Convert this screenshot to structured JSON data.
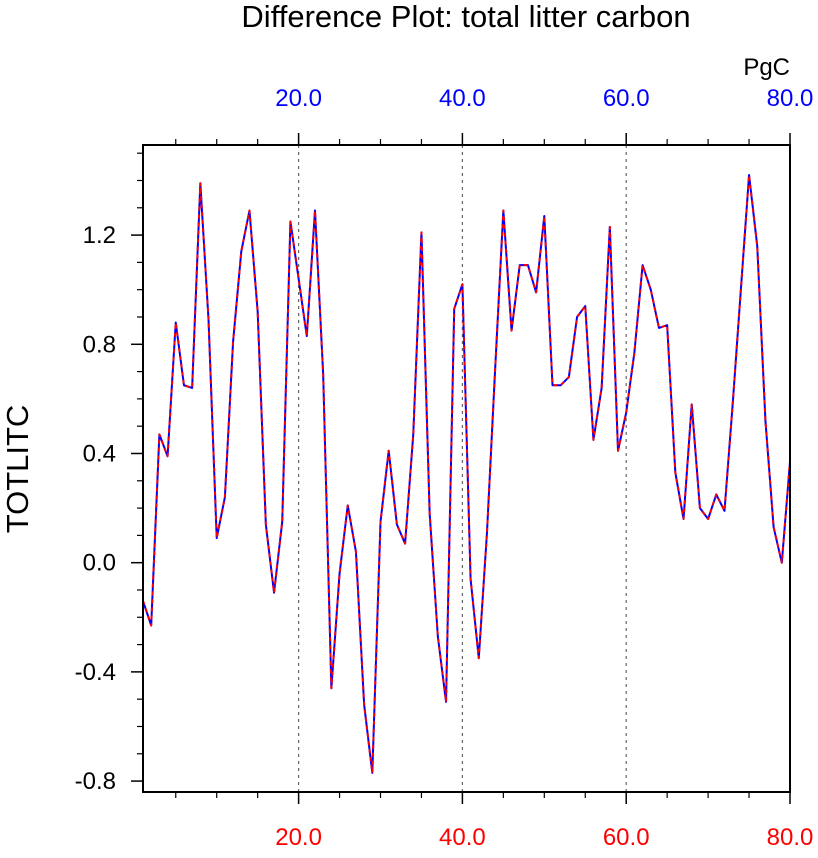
{
  "chart_data": {
    "type": "line",
    "title": "Difference Plot: total litter carbon",
    "units": "PgC",
    "ylabel": "TOTLITC",
    "xlabel": "",
    "xlim": [
      1,
      80
    ],
    "ylim": [
      -0.84,
      1.53
    ],
    "grid": "vertical dashed lines at 20, 40, 60",
    "x_ticks_bottom": [
      20,
      40,
      60,
      80
    ],
    "x_tick_labels_bottom": [
      "20.0",
      "40.0",
      "60.0",
      "80.0"
    ],
    "x_tick_labels_bottom_color": "#ff0000",
    "x_ticks_top": [
      20,
      40,
      60,
      80
    ],
    "x_tick_labels_top": [
      "20.0",
      "40.0",
      "60.0",
      "80.0"
    ],
    "x_tick_labels_top_color": "#0000ff",
    "y_ticks": [
      -0.8,
      -0.4,
      0.0,
      0.4,
      0.8,
      1.2
    ],
    "y_tick_labels": [
      "-0.8",
      "-0.4",
      "0.0",
      "0.4",
      "0.8",
      "1.2"
    ],
    "series": [
      {
        "color": "#0000ff",
        "style": "solid",
        "x": [
          1,
          2,
          3,
          4,
          5,
          6,
          7,
          8,
          9,
          10,
          11,
          12,
          13,
          14,
          15,
          16,
          17,
          18,
          19,
          20,
          21,
          22,
          23,
          24,
          25,
          26,
          27,
          28,
          29,
          30,
          31,
          32,
          33,
          34,
          35,
          36,
          37,
          38,
          39,
          40,
          41,
          42,
          43,
          44,
          45,
          46,
          47,
          48,
          49,
          50,
          51,
          52,
          53,
          54,
          55,
          56,
          57,
          58,
          59,
          60,
          61,
          62,
          63,
          64,
          65,
          66,
          67,
          68,
          69,
          70,
          71,
          72,
          73,
          74,
          75,
          76,
          77,
          78,
          79,
          80
        ],
        "values": [
          -0.14,
          -0.23,
          0.47,
          0.39,
          0.88,
          0.65,
          0.64,
          1.39,
          0.89,
          0.09,
          0.24,
          0.81,
          1.14,
          1.29,
          0.92,
          0.14,
          -0.11,
          0.15,
          1.25,
          1.04,
          0.83,
          1.29,
          0.69,
          -0.46,
          -0.04,
          0.21,
          0.04,
          -0.52,
          -0.77,
          0.15,
          0.41,
          0.14,
          0.07,
          0.47,
          1.21,
          0.18,
          -0.27,
          -0.51,
          0.93,
          1.02,
          -0.06,
          -0.35,
          0.11,
          0.71,
          1.29,
          0.85,
          1.09,
          1.09,
          0.99,
          1.27,
          0.65,
          0.65,
          0.68,
          0.9,
          0.94,
          0.45,
          0.64,
          1.23,
          0.41,
          0.55,
          0.77,
          1.09,
          1.0,
          0.86,
          0.87,
          0.33,
          0.16,
          0.58,
          0.2,
          0.16,
          0.25,
          0.19,
          0.58,
          1.0,
          1.42,
          1.16,
          0.52,
          0.13,
          0.0,
          0.37
        ]
      },
      {
        "color": "#ff0000",
        "style": "dashed",
        "x": [
          1,
          2,
          3,
          4,
          5,
          6,
          7,
          8,
          9,
          10,
          11,
          12,
          13,
          14,
          15,
          16,
          17,
          18,
          19,
          20,
          21,
          22,
          23,
          24,
          25,
          26,
          27,
          28,
          29,
          30,
          31,
          32,
          33,
          34,
          35,
          36,
          37,
          38,
          39,
          40,
          41,
          42,
          43,
          44,
          45,
          46,
          47,
          48,
          49,
          50,
          51,
          52,
          53,
          54,
          55,
          56,
          57,
          58,
          59,
          60,
          61,
          62,
          63,
          64,
          65,
          66,
          67,
          68,
          69,
          70,
          71,
          72,
          73,
          74,
          75,
          76,
          77,
          78,
          79,
          80
        ],
        "values": [
          -0.14,
          -0.23,
          0.47,
          0.39,
          0.88,
          0.65,
          0.64,
          1.39,
          0.89,
          0.09,
          0.24,
          0.81,
          1.14,
          1.29,
          0.92,
          0.14,
          -0.11,
          0.15,
          1.25,
          1.04,
          0.83,
          1.29,
          0.69,
          -0.46,
          -0.04,
          0.21,
          0.04,
          -0.52,
          -0.77,
          0.15,
          0.41,
          0.14,
          0.07,
          0.47,
          1.21,
          0.18,
          -0.27,
          -0.51,
          0.93,
          1.02,
          -0.06,
          -0.35,
          0.11,
          0.71,
          1.29,
          0.85,
          1.09,
          1.09,
          0.99,
          1.27,
          0.65,
          0.65,
          0.68,
          0.9,
          0.94,
          0.45,
          0.64,
          1.23,
          0.41,
          0.55,
          0.77,
          1.09,
          1.0,
          0.86,
          0.87,
          0.33,
          0.16,
          0.58,
          0.2,
          0.16,
          0.25,
          0.19,
          0.58,
          1.0,
          1.42,
          1.16,
          0.52,
          0.13,
          0.0,
          0.37
        ]
      }
    ]
  }
}
